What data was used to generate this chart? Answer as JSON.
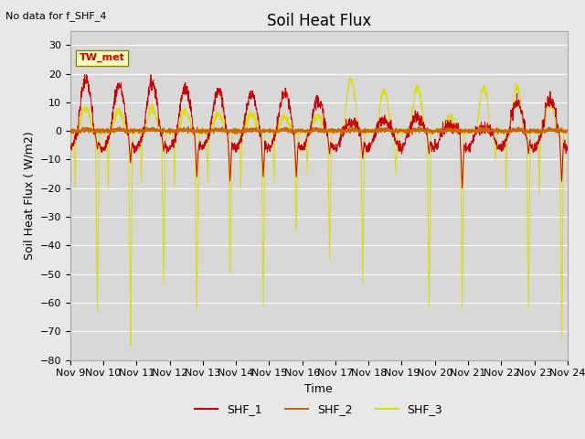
{
  "title": "Soil Heat Flux",
  "ylabel": "Soil Heat Flux ( W/m2)",
  "xlabel": "Time",
  "note": "No data for f_SHF_4",
  "legend_label": "TW_met",
  "series_labels": [
    "SHF_1",
    "SHF_2",
    "SHF_3"
  ],
  "colors": [
    "#cc0000",
    "#cc6600",
    "#dddd00"
  ],
  "ylim": [
    -80,
    35
  ],
  "yticks": [
    -80,
    -70,
    -60,
    -50,
    -40,
    -30,
    -20,
    -10,
    0,
    10,
    20,
    30
  ],
  "bg_color": "#e8e8e8",
  "plot_bg_color": "#d8d8d8",
  "grid_color": "#ffffff",
  "hline_color": "#cc6600",
  "n_days": 15,
  "start_day": 9,
  "ppd": 144,
  "title_fontsize": 12,
  "axis_label_fontsize": 9,
  "tick_fontsize": 8
}
